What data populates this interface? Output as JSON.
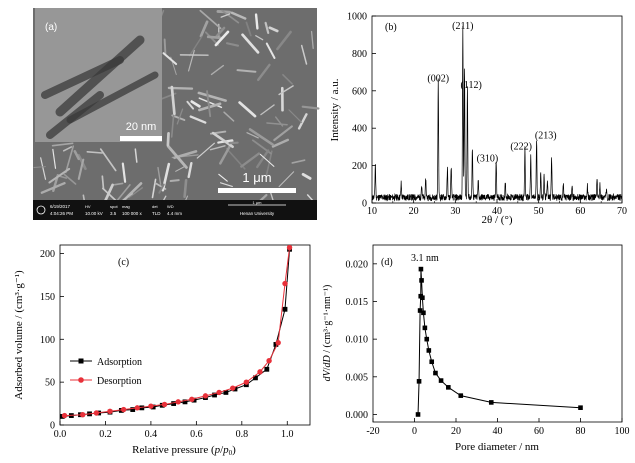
{
  "panels": {
    "a": {
      "label": "(a)",
      "scale_large": "1 μm",
      "scale_inset": "20 nm",
      "sem_bar": {
        "date": "6/19/2017",
        "time": "4:04:26 PM",
        "hv_label": "HV",
        "hv": "10.00 kV",
        "spot_label": "spot",
        "spot": "3.5",
        "mag_label": "mag",
        "mag": "100 000 x",
        "det_label": "det",
        "det": "TLD",
        "wd_label": "WD",
        "wd": "4.4 mm",
        "bar_scale": "1 μm",
        "institution": "Henan University"
      }
    }
  },
  "chart_data": [
    {
      "panel": "(b)",
      "type": "line",
      "xlabel": "2θ / (°)",
      "ylabel": "Intensity / a.u.",
      "xlim": [
        10,
        70
      ],
      "ylim": [
        0,
        1000
      ],
      "xticks": [
        10,
        20,
        30,
        40,
        50,
        60,
        70
      ],
      "yticks": [
        0,
        200,
        400,
        600,
        800,
        1000
      ],
      "color": "#000000",
      "baseline": 30,
      "noise_amplitude": 18,
      "peaks": [
        {
          "x": 10.8,
          "y": 180
        },
        {
          "x": 17.0,
          "y": 75
        },
        {
          "x": 21.9,
          "y": 65
        },
        {
          "x": 22.9,
          "y": 100
        },
        {
          "x": 25.9,
          "y": 630
        },
        {
          "x": 28.1,
          "y": 150
        },
        {
          "x": 29.0,
          "y": 170
        },
        {
          "x": 31.8,
          "y": 910
        },
        {
          "x": 32.2,
          "y": 700
        },
        {
          "x": 32.9,
          "y": 590
        },
        {
          "x": 34.1,
          "y": 270
        },
        {
          "x": 35.5,
          "y": 90
        },
        {
          "x": 39.8,
          "y": 195
        },
        {
          "x": 42.0,
          "y": 80
        },
        {
          "x": 46.7,
          "y": 260
        },
        {
          "x": 48.1,
          "y": 220
        },
        {
          "x": 49.5,
          "y": 310
        },
        {
          "x": 50.5,
          "y": 135
        },
        {
          "x": 51.3,
          "y": 110
        },
        {
          "x": 52.1,
          "y": 100
        },
        {
          "x": 53.1,
          "y": 225
        },
        {
          "x": 55.9,
          "y": 70
        },
        {
          "x": 58.0,
          "y": 60
        },
        {
          "x": 61.7,
          "y": 60
        },
        {
          "x": 64.0,
          "y": 95
        },
        {
          "x": 64.7,
          "y": 75
        },
        {
          "x": 66.3,
          "y": 55
        }
      ],
      "annotations": [
        {
          "text": "(002)",
          "x": 25.9,
          "y": 635
        },
        {
          "text": "(211)",
          "x": 31.8,
          "y": 915
        },
        {
          "text": "(112)",
          "x": 33.8,
          "y": 600
        },
        {
          "text": "(310)",
          "x": 37.7,
          "y": 205
        },
        {
          "text": "(222)",
          "x": 45.8,
          "y": 270
        },
        {
          "text": "(213)",
          "x": 51.7,
          "y": 330
        }
      ]
    },
    {
      "panel": "(c)",
      "type": "line",
      "xlabel_main": "Relative pressure (",
      "xlabel_var": "p",
      "xlabel_slash": "/",
      "xlabel_var2": "p",
      "xlabel_sub": "0",
      "xlabel_end": ")",
      "ylabel": "Adsorbed volume / (cm³·g⁻¹)",
      "xlim": [
        0,
        1.1
      ],
      "ylim": [
        0,
        210
      ],
      "xticks": [
        0.0,
        0.2,
        0.4,
        0.6,
        0.8,
        1.0
      ],
      "yticks": [
        0,
        50,
        100,
        150,
        200
      ],
      "legend_position": "middle-left",
      "series": [
        {
          "name": "Adsorption",
          "color": "#000000",
          "marker": "square",
          "x": [
            0.01,
            0.05,
            0.09,
            0.13,
            0.17,
            0.22,
            0.27,
            0.32,
            0.36,
            0.41,
            0.45,
            0.5,
            0.55,
            0.59,
            0.64,
            0.68,
            0.73,
            0.77,
            0.82,
            0.86,
            0.91,
            0.95,
            0.99,
            1.01
          ],
          "y": [
            10,
            11,
            12,
            13,
            14,
            15,
            17,
            18,
            20,
            21,
            23,
            25,
            27,
            29,
            32,
            35,
            38,
            42,
            47,
            55,
            65,
            94,
            135,
            205
          ]
        },
        {
          "name": "Desorption",
          "color": "#e8313a",
          "marker": "circle",
          "x": [
            0.02,
            0.1,
            0.16,
            0.22,
            0.28,
            0.34,
            0.4,
            0.46,
            0.52,
            0.58,
            0.64,
            0.7,
            0.76,
            0.82,
            0.88,
            0.92,
            0.96,
            0.99,
            1.01
          ],
          "y": [
            11,
            12,
            14,
            16,
            18,
            20,
            22,
            24,
            27,
            30,
            34,
            38,
            43,
            50,
            62,
            75,
            96,
            165,
            207
          ]
        }
      ]
    },
    {
      "panel": "(d)",
      "type": "line",
      "xlabel": "Pore diameter / nm",
      "ylabel_var": "dV",
      "ylabel_slash": "/",
      "ylabel_var2": "dD",
      "ylabel_unit": " / (cm³·g⁻¹·nm⁻¹)",
      "xlim": [
        -20,
        100
      ],
      "ylim": [
        -0.001,
        0.0225
      ],
      "xticks": [
        -20,
        0,
        20,
        40,
        60,
        80,
        100
      ],
      "xtick_labels": [
        "-20",
        "0",
        "20",
        "40",
        "60",
        "80",
        "100"
      ],
      "yticks": [
        0.0,
        0.005,
        0.01,
        0.015,
        0.02
      ],
      "ytick_labels": [
        "0.000",
        "0.005",
        "0.010",
        "0.015",
        "0.020"
      ],
      "annotation": {
        "text": "3.1 nm",
        "x": 3.1,
        "y": 0.0201
      },
      "series": [
        {
          "color": "#000000",
          "marker": "square",
          "x": [
            1.7,
            2.2,
            2.7,
            3.0,
            3.1,
            3.4,
            3.8,
            4.3,
            5.0,
            5.9,
            6.9,
            8.3,
            10.1,
            12.8,
            16.3,
            22.3,
            37.0,
            80.0
          ],
          "y": [
            0.0,
            0.0044,
            0.0138,
            0.0157,
            0.0193,
            0.0178,
            0.0155,
            0.0135,
            0.0115,
            0.01,
            0.0085,
            0.007,
            0.0055,
            0.0045,
            0.0036,
            0.0025,
            0.0016,
            0.0009
          ]
        }
      ]
    }
  ]
}
